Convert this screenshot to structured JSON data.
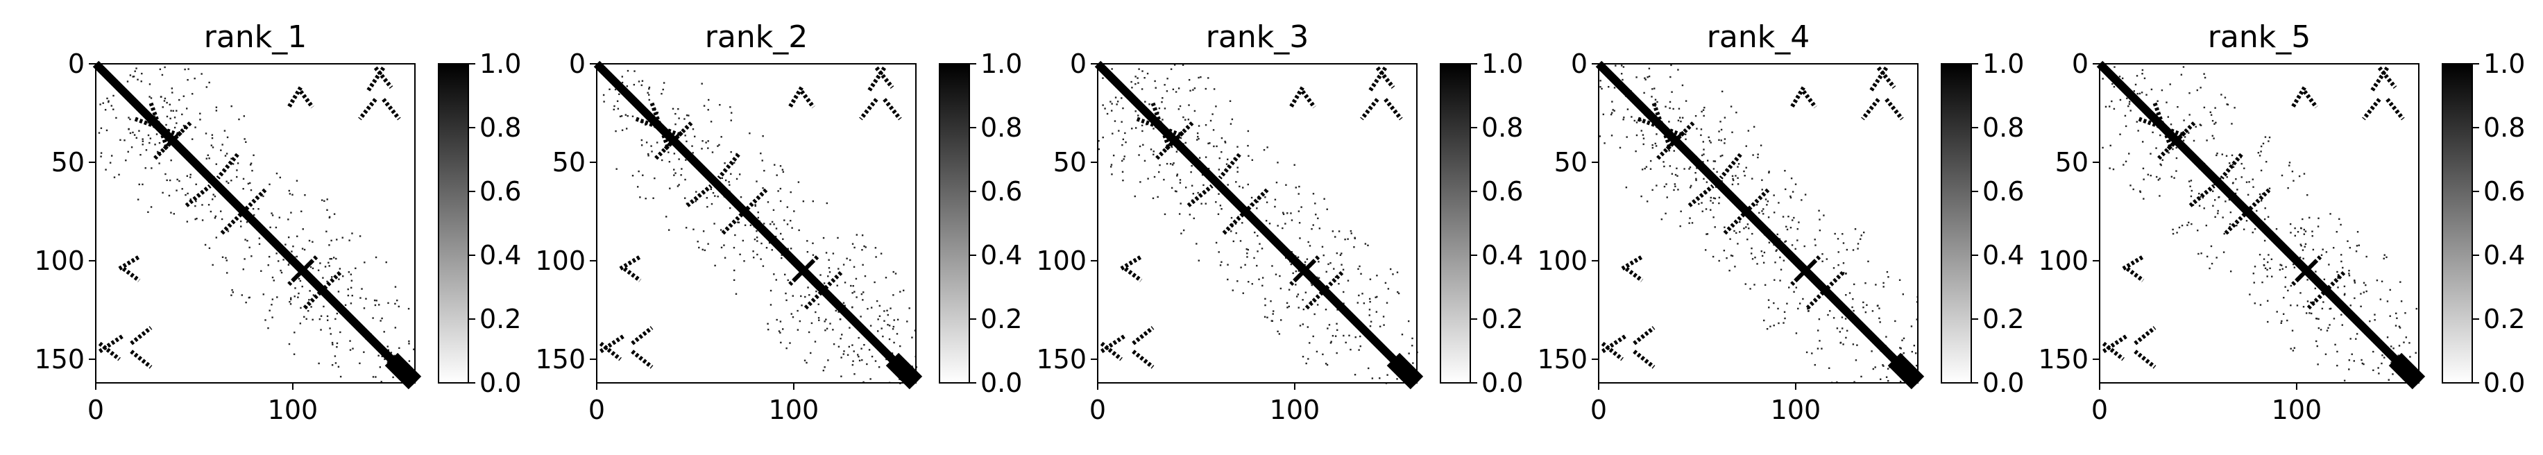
{
  "chart_data": [
    {
      "type": "heatmap",
      "title": "rank_1",
      "xlim": [
        0,
        162
      ],
      "ylim": [
        162,
        0
      ],
      "xticks": [
        "0",
        "100"
      ],
      "yticks": [
        "0",
        "50",
        "100",
        "150"
      ],
      "colorbar": {
        "min": 0.0,
        "max": 1.0,
        "ticks": [
          "0.0",
          "0.2",
          "0.4",
          "0.6",
          "0.8",
          "1.0"
        ],
        "colormap": "white-to-black"
      },
      "grid": false,
      "structure": {
        "diagonal_band": [
          [
            0,
            162
          ]
        ],
        "off_diagonal_contact_segments": [
          [
            [
              20,
              28
            ],
            [
              42,
              36
            ]
          ],
          [
            [
              30,
              48
            ],
            [
              44,
              34
            ]
          ],
          [
            [
              46,
              72
            ],
            [
              58,
              62
            ]
          ],
          [
            [
              64,
              86
            ],
            [
              76,
              74
            ]
          ],
          [
            [
              98,
              112
            ],
            [
              110,
              100
            ]
          ],
          [
            [
              106,
              124
            ],
            [
              116,
              114
            ]
          ],
          [
            [
              12,
              104
            ],
            [
              22,
              98
            ]
          ],
          [
            [
              2,
              146
            ],
            [
              14,
              138
            ]
          ],
          [
            [
              18,
              142
            ],
            [
              28,
              134
            ]
          ],
          [
            [
              142,
              2
            ],
            [
              150,
              12
            ]
          ],
          [
            [
              146,
              18
            ],
            [
              154,
              28
            ]
          ],
          [
            [
              104,
              14
            ],
            [
              110,
              22
            ]
          ]
        ]
      }
    },
    {
      "type": "heatmap",
      "title": "rank_2",
      "xlim": [
        0,
        162
      ],
      "ylim": [
        162,
        0
      ],
      "xticks": [
        "0",
        "100"
      ],
      "yticks": [
        "0",
        "50",
        "100",
        "150"
      ],
      "colorbar": {
        "min": 0.0,
        "max": 1.0,
        "ticks": [
          "0.0",
          "0.2",
          "0.4",
          "0.6",
          "0.8",
          "1.0"
        ],
        "colormap": "white-to-black"
      },
      "grid": false
    },
    {
      "type": "heatmap",
      "title": "rank_3",
      "xlim": [
        0,
        162
      ],
      "ylim": [
        162,
        0
      ],
      "xticks": [
        "0",
        "100"
      ],
      "yticks": [
        "0",
        "50",
        "100",
        "150"
      ],
      "colorbar": {
        "min": 0.0,
        "max": 1.0,
        "ticks": [
          "0.0",
          "0.2",
          "0.4",
          "0.6",
          "0.8",
          "1.0"
        ],
        "colormap": "white-to-black"
      },
      "grid": false
    },
    {
      "type": "heatmap",
      "title": "rank_4",
      "xlim": [
        0,
        162
      ],
      "ylim": [
        162,
        0
      ],
      "xticks": [
        "0",
        "100"
      ],
      "yticks": [
        "0",
        "50",
        "100",
        "150"
      ],
      "colorbar": {
        "min": 0.0,
        "max": 1.0,
        "ticks": [
          "0.0",
          "0.2",
          "0.4",
          "0.6",
          "0.8",
          "1.0"
        ],
        "colormap": "white-to-black"
      },
      "grid": false
    },
    {
      "type": "heatmap",
      "title": "rank_5",
      "xlim": [
        0,
        162
      ],
      "ylim": [
        162,
        0
      ],
      "xticks": [
        "0",
        "100"
      ],
      "yticks": [
        "0",
        "50",
        "100",
        "150"
      ],
      "colorbar": {
        "min": 0.0,
        "max": 1.0,
        "ticks": [
          "0.0",
          "0.2",
          "0.4",
          "0.6",
          "0.8",
          "1.0"
        ],
        "colormap": "white-to-black"
      },
      "grid": false
    }
  ]
}
